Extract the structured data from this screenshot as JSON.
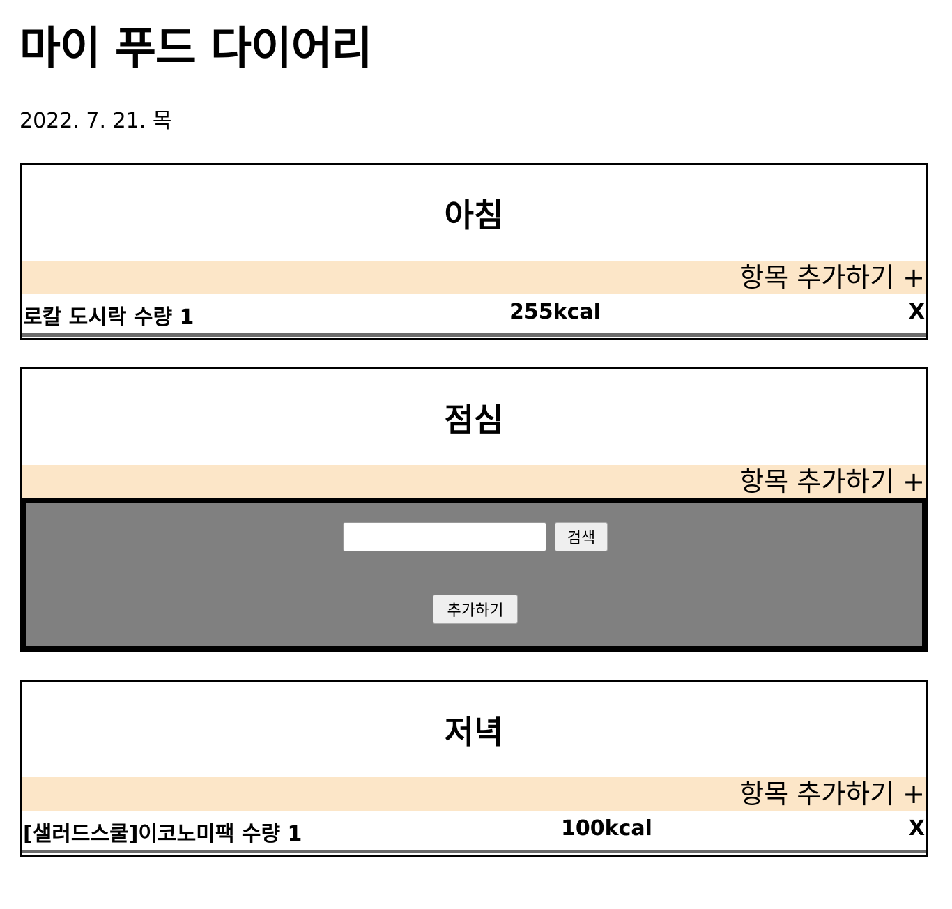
{
  "header": {
    "title": "마이 푸드 다이어리",
    "date": "2022. 7. 21. 목"
  },
  "meals": {
    "breakfast": {
      "title": "아침",
      "add_label": "항목 추가하기 +",
      "items": [
        {
          "name": "로칼 도시락 수량 1",
          "kcal": "255kcal",
          "delete": "X"
        }
      ]
    },
    "lunch": {
      "title": "점심",
      "add_label": "항목 추가하기 +",
      "panel": {
        "search_value": "",
        "search_button": "검색",
        "add_button": "추가하기"
      }
    },
    "dinner": {
      "title": "저녁",
      "add_label": "항목 추가하기 +",
      "items": [
        {
          "name": "[샐러드스쿨]이코노미팩 수량 1",
          "kcal": "100kcal",
          "delete": "X"
        }
      ]
    }
  }
}
